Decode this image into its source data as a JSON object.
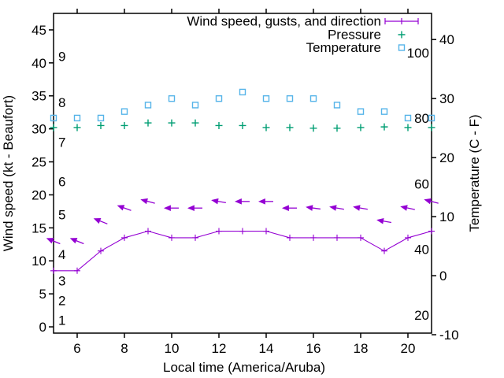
{
  "chart_data": {
    "type": "line",
    "title": "",
    "xlabel": "Local time (America/Aruba)",
    "x_range": [
      5,
      21
    ],
    "x_ticks": [
      6,
      8,
      10,
      12,
      14,
      16,
      18,
      20
    ],
    "x": [
      5,
      6,
      7,
      8,
      9,
      10,
      11,
      12,
      13,
      14,
      15,
      16,
      17,
      18,
      19,
      20,
      21
    ],
    "y_left": {
      "label": "Wind speed (kt - Beaufort)",
      "units": "knots",
      "range": [
        -0.95,
        47.5
      ],
      "ticks": [
        0,
        5,
        10,
        15,
        20,
        25,
        30,
        35,
        40,
        45
      ],
      "beaufort_scale": [
        {
          "force": "1",
          "at_kt": 1
        },
        {
          "force": "2",
          "at_kt": 4
        },
        {
          "force": "3",
          "at_kt": 7
        },
        {
          "force": "4",
          "at_kt": 11
        },
        {
          "force": "5",
          "at_kt": 17
        },
        {
          "force": "6",
          "at_kt": 22
        },
        {
          "force": "7",
          "at_kt": 28
        },
        {
          "force": "8",
          "at_kt": 34
        },
        {
          "force": "9",
          "at_kt": 41
        }
      ]
    },
    "y_right": {
      "label": "Temperature (C - F)",
      "units": "celsius (inner labels fahrenheit)",
      "range_c": [
        -9.73,
        44.43
      ],
      "ticks_c": [
        -10,
        0,
        10,
        20,
        30,
        40
      ],
      "fahrenheit_labels": [
        20,
        40,
        60,
        80,
        100
      ]
    },
    "series": {
      "wind": {
        "name": "Wind speed",
        "axis": "left",
        "color": "#9400d3",
        "marker": "plus-on-line",
        "values_kt": [
          8.5,
          8.5,
          11.5,
          13.5,
          14.5,
          13.5,
          13.5,
          14.5,
          14.5,
          14.5,
          13.5,
          13.5,
          13.5,
          13.5,
          11.5,
          13.5,
          14.5
        ]
      },
      "gusts": {
        "name": "Wind gusts with direction arrows",
        "axis": "left",
        "color": "#9400d3",
        "marker": "left-arrow",
        "values_kt": [
          13,
          13,
          16,
          18,
          19,
          18,
          18,
          19,
          19,
          19,
          18,
          18,
          18,
          18,
          16,
          18,
          19
        ],
        "arrow_tilt_deg_above_horizontal": [
          22,
          22,
          22,
          20,
          15,
          0,
          0,
          10,
          0,
          0,
          0,
          8,
          10,
          10,
          10,
          12,
          15
        ]
      },
      "pressure": {
        "name": "Pressure",
        "axis": "left",
        "color": "#009e73",
        "marker": "plus",
        "units": "unlabeled axis - values read in left-axis units",
        "values": [
          30.2,
          30.2,
          30.5,
          30.5,
          30.9,
          30.9,
          30.9,
          30.5,
          30.5,
          30.2,
          30.2,
          30.1,
          30.1,
          30.2,
          30.3,
          30.2,
          30.2
        ]
      },
      "temperature": {
        "name": "Temperature",
        "axis": "right",
        "color": "#56b4e9",
        "marker": "open-square",
        "values_c": [
          26.7,
          26.7,
          26.7,
          27.8,
          28.9,
          30.0,
          28.9,
          30.0,
          31.1,
          30.0,
          30.0,
          30.0,
          28.9,
          27.8,
          27.8,
          26.7,
          26.7
        ],
        "values_f": [
          80,
          80,
          80,
          82,
          84,
          86,
          84,
          86,
          88,
          86,
          86,
          86,
          84,
          82,
          82,
          80,
          80
        ]
      }
    },
    "legend": [
      {
        "label": "Wind speed, gusts, and direction",
        "marker": "errorbar-line",
        "color": "#9400d3"
      },
      {
        "label": "Pressure",
        "marker": "plus",
        "color": "#009e73"
      },
      {
        "label": "Temperature",
        "marker": "open-square",
        "color": "#56b4e9"
      }
    ],
    "layout_hints": {
      "grid": false,
      "legend_position": "top-right-inside",
      "background": "#ffffff"
    }
  }
}
